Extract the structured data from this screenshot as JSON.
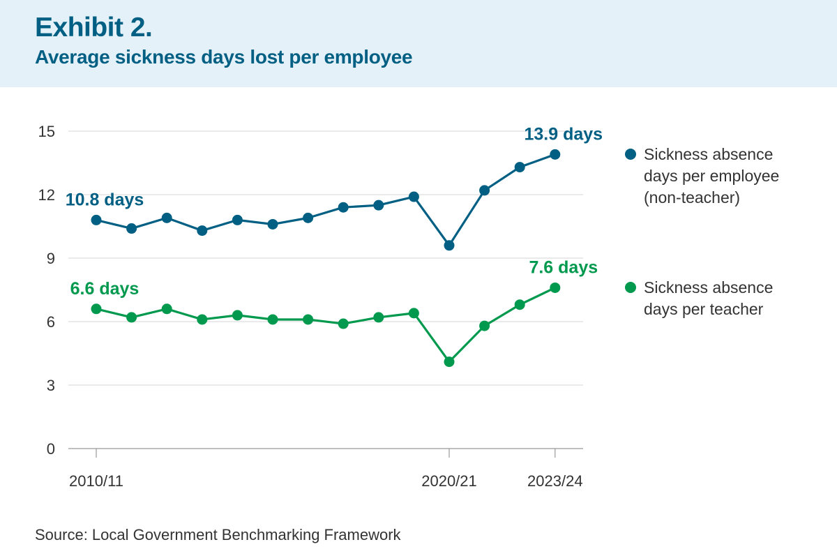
{
  "header": {
    "exhibit": "Exhibit 2.",
    "title": "Average sickness days lost per employee"
  },
  "source": "Source: Local Government Benchmarking Framework",
  "legend": [
    {
      "lines": [
        "Sickness absence",
        "days per employee",
        "(non-teacher)"
      ],
      "color": "#005f83"
    },
    {
      "lines": [
        "Sickness absence",
        "days per teacher"
      ],
      "color": "#00994d"
    }
  ],
  "chart_data": {
    "type": "line",
    "x_tick_labels": [
      {
        "label": "2010/11",
        "index": 0
      },
      {
        "label": "2020/21",
        "index": 10
      },
      {
        "label": "2023/24",
        "index": 13
      }
    ],
    "ylim": [
      0,
      15
    ],
    "yticks": [
      0,
      3,
      6,
      9,
      12,
      15
    ],
    "grid": true,
    "legend_position": "right",
    "series": [
      {
        "name": "Sickness absence days per employee (non-teacher)",
        "color": "#005f83",
        "values": [
          10.8,
          10.4,
          10.9,
          10.3,
          10.8,
          10.6,
          10.9,
          11.4,
          11.5,
          11.9,
          9.6,
          12.2,
          13.3,
          13.9
        ],
        "labels": [
          {
            "index": 0,
            "text": "10.8 days"
          },
          {
            "index": 13,
            "text": "13.9 days"
          }
        ]
      },
      {
        "name": "Sickness absence days per teacher",
        "color": "#00994d",
        "values": [
          6.6,
          6.2,
          6.6,
          6.1,
          6.3,
          6.1,
          6.1,
          5.9,
          6.2,
          6.4,
          4.1,
          5.8,
          6.8,
          7.6
        ],
        "labels": [
          {
            "index": 0,
            "text": "6.6 days"
          },
          {
            "index": 13,
            "text": "7.6 days"
          }
        ]
      }
    ]
  }
}
